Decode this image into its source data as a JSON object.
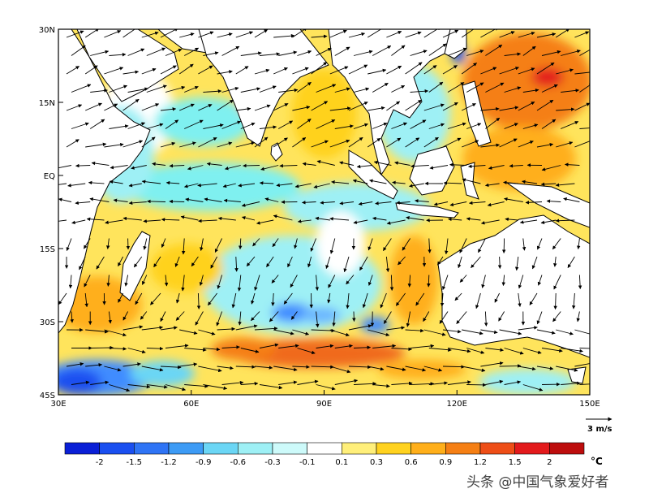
{
  "map": {
    "lon_range": [
      30,
      150
    ],
    "lat_range": [
      -45,
      30
    ],
    "lon_ticks": [
      "30E",
      "60E",
      "90E",
      "120E",
      "150E"
    ],
    "lat_ticks": [
      "30N",
      "15N",
      "EQ",
      "15S",
      "30S",
      "45S"
    ],
    "regions": [
      {
        "name": "subtropical-south-warm-band",
        "value": 1.2,
        "color": "#f06a1c"
      },
      {
        "name": "nw-pacific-warm-pool",
        "value": 2.0,
        "color": "#e31a1c"
      },
      {
        "name": "equatorial-cool-band",
        "value": -0.6,
        "color": "#7ff0f0"
      },
      {
        "name": "southern-ocean-cold",
        "value": -1.5,
        "color": "#1f6bff"
      },
      {
        "name": "south-central-cold-patch",
        "value": -1.2,
        "color": "#3f8cff"
      }
    ]
  },
  "wind_reference": {
    "label": "3 m/s",
    "magnitude": 3
  },
  "colorbar": {
    "labels": [
      "-2",
      "-1.5",
      "-1.2",
      "-0.9",
      "-0.6",
      "-0.3",
      "-0.1",
      "0.1",
      "0.3",
      "0.6",
      "0.9",
      "1.2",
      "1.5",
      "2"
    ],
    "colors": [
      "#0a1fd6",
      "#1a4ff0",
      "#2f74f5",
      "#3d9bf5",
      "#6bd6f5",
      "#9ef0f5",
      "#cdfafa",
      "#ffffff",
      "#ffef7a",
      "#ffd21f",
      "#ffaf1a",
      "#f57f14",
      "#ee4e17",
      "#e31a1c",
      "#bd0d0d"
    ],
    "unit": "°C"
  },
  "watermark": "头条 @中国气象爱好者",
  "colors": {
    "land": "#ffffff",
    "ocean_base": "#f5f3b5",
    "coast": "#000000",
    "arrow": "#000000"
  }
}
